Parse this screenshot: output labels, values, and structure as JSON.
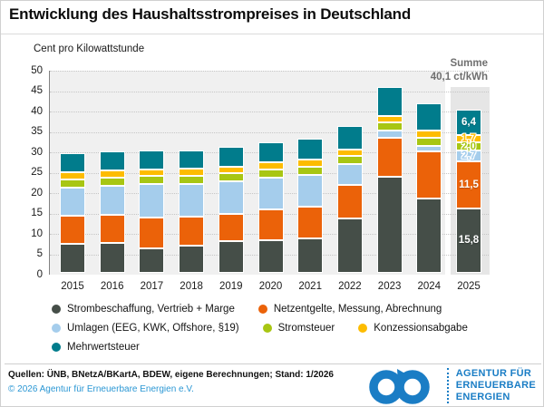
{
  "title": "Entwicklung des Haushaltsstrompreises in Deutschland",
  "subtitle": "Cent pro Kilowattstunde",
  "summe": {
    "label": "Summe",
    "value": "40,1 ct/kWh"
  },
  "chart_data": {
    "type": "bar",
    "stacked": true,
    "title": "Entwicklung des Haushaltsstrompreises in Deutschland",
    "ylabel": "Cent pro Kilowattstunde",
    "ylim": [
      0,
      50
    ],
    "ytick_step": 5,
    "grid": "horizontal-dotted",
    "legend_position": "bottom",
    "categories": [
      "2015",
      "2016",
      "2017",
      "2018",
      "2019",
      "2020",
      "2021",
      "2022",
      "2023",
      "2024",
      "2025"
    ],
    "series": [
      {
        "name": "Strombeschaffung, Vertrieb + Marge",
        "color": "#454e48",
        "values": [
          7.2,
          7.3,
          6.1,
          6.6,
          7.7,
          7.9,
          8.4,
          13.4,
          23.5,
          18.3,
          15.8
        ]
      },
      {
        "name": "Netzentgelte, Messung, Abrechnung",
        "color": "#eb6209",
        "values": [
          6.8,
          6.9,
          7.4,
          7.1,
          6.8,
          7.7,
          7.8,
          8.1,
          9.7,
          11.4,
          11.5
        ]
      },
      {
        "name": "Umlagen (EEG, KWK, Offshore, §19)",
        "color": "#a5cdec",
        "values": [
          7.0,
          7.2,
          8.2,
          8.1,
          7.9,
          7.8,
          7.8,
          5.2,
          1.6,
          1.5,
          2.7
        ]
      },
      {
        "name": "Stromsteuer",
        "color": "#a8c613",
        "values": [
          2.0,
          2.0,
          2.0,
          2.0,
          2.0,
          2.0,
          2.0,
          2.0,
          2.0,
          2.0,
          2.0
        ]
      },
      {
        "name": "Konzessionsabgabe",
        "color": "#fdbc00",
        "values": [
          1.7,
          1.7,
          1.7,
          1.7,
          1.7,
          1.7,
          1.7,
          1.6,
          1.7,
          1.7,
          1.7
        ]
      },
      {
        "name": "Mehrwertsteuer",
        "color": "#017c8c",
        "values": [
          4.6,
          4.7,
          4.6,
          4.6,
          4.8,
          5.0,
          5.1,
          5.7,
          7.0,
          6.7,
          6.4
        ]
      }
    ],
    "totals": [
      29.3,
      29.8,
      30.0,
      30.1,
      30.9,
      32.1,
      32.8,
      36.0,
      45.5,
      41.6,
      40.1
    ],
    "labels_2025": [
      "15,8",
      "11,5",
      "2,7",
      "2,0",
      "1,7",
      "6,4"
    ],
    "annotation": "Summe 40,1 ct/kWh",
    "highlighted_category": "2025"
  },
  "legend_rows": [
    [
      0,
      1
    ],
    [
      2,
      3,
      4
    ],
    [
      5
    ]
  ],
  "footer": {
    "sources": "Quellen: ÜNB, BNetzA/BKartA, BDEW, eigene Berechnungen; Stand: 1/2026",
    "copyright": "© 2026 Agentur für Erneuerbare Energien e.V."
  },
  "logo": {
    "lines": [
      "AGENTUR FÜR",
      "ERNEUERBARE",
      "ENERGIEN"
    ],
    "color": "#1a7dc5"
  }
}
